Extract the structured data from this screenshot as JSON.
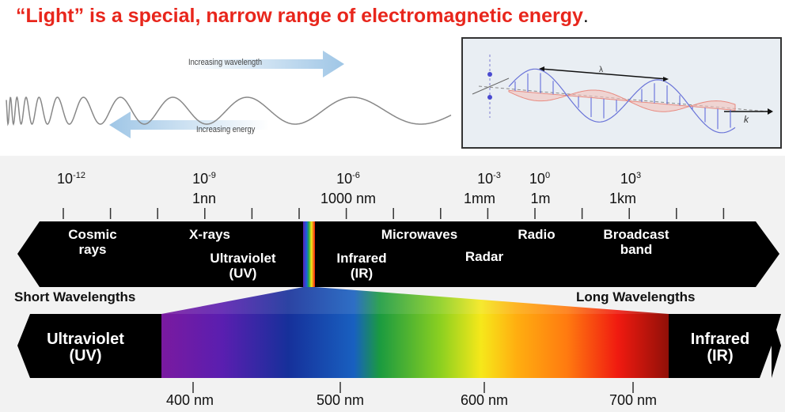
{
  "title": {
    "text": "“Light” is a special, narrow range of electromagnetic energy",
    "period": "."
  },
  "wave_figure": {
    "wavelength_label": "Increasing wavelength",
    "energy_label": "Increasing energy",
    "arrow_color": "#9fc6e6"
  },
  "em_wave": {
    "lambda_label": "λ",
    "k_label": "k",
    "e_color": "#5560d8",
    "b_color": "#e88a80"
  },
  "scale": {
    "exponents": [
      {
        "base": "10",
        "exp": "-12"
      },
      {
        "base": "10",
        "exp": "-9"
      },
      {
        "base": "10",
        "exp": "-6"
      },
      {
        "base": "10",
        "exp": "-3"
      },
      {
        "base": "10",
        "exp": "0"
      },
      {
        "base": "10",
        "exp": "3"
      }
    ],
    "units": [
      "1nn",
      "1000 nm",
      "1mm",
      "1m",
      "1km"
    ]
  },
  "bands": {
    "cosmic": [
      "Cosmic",
      "rays"
    ],
    "xrays": "X-rays",
    "uv": [
      "Ultraviolet",
      "(UV)"
    ],
    "microwaves": "Microwaves",
    "ir": [
      "Infrared",
      "(IR)"
    ],
    "radar": "Radar",
    "radio": "Radio",
    "broadcast": [
      "Broadcast",
      "band"
    ]
  },
  "short_label": "Short Wavelengths",
  "long_label": "Long Wavelengths",
  "visible": {
    "left": [
      "Ultraviolet",
      "(UV)"
    ],
    "right": [
      "Infrared",
      "(IR)"
    ],
    "ticks": [
      "400 nm",
      "500 nm",
      "600 nm",
      "700 nm"
    ]
  }
}
